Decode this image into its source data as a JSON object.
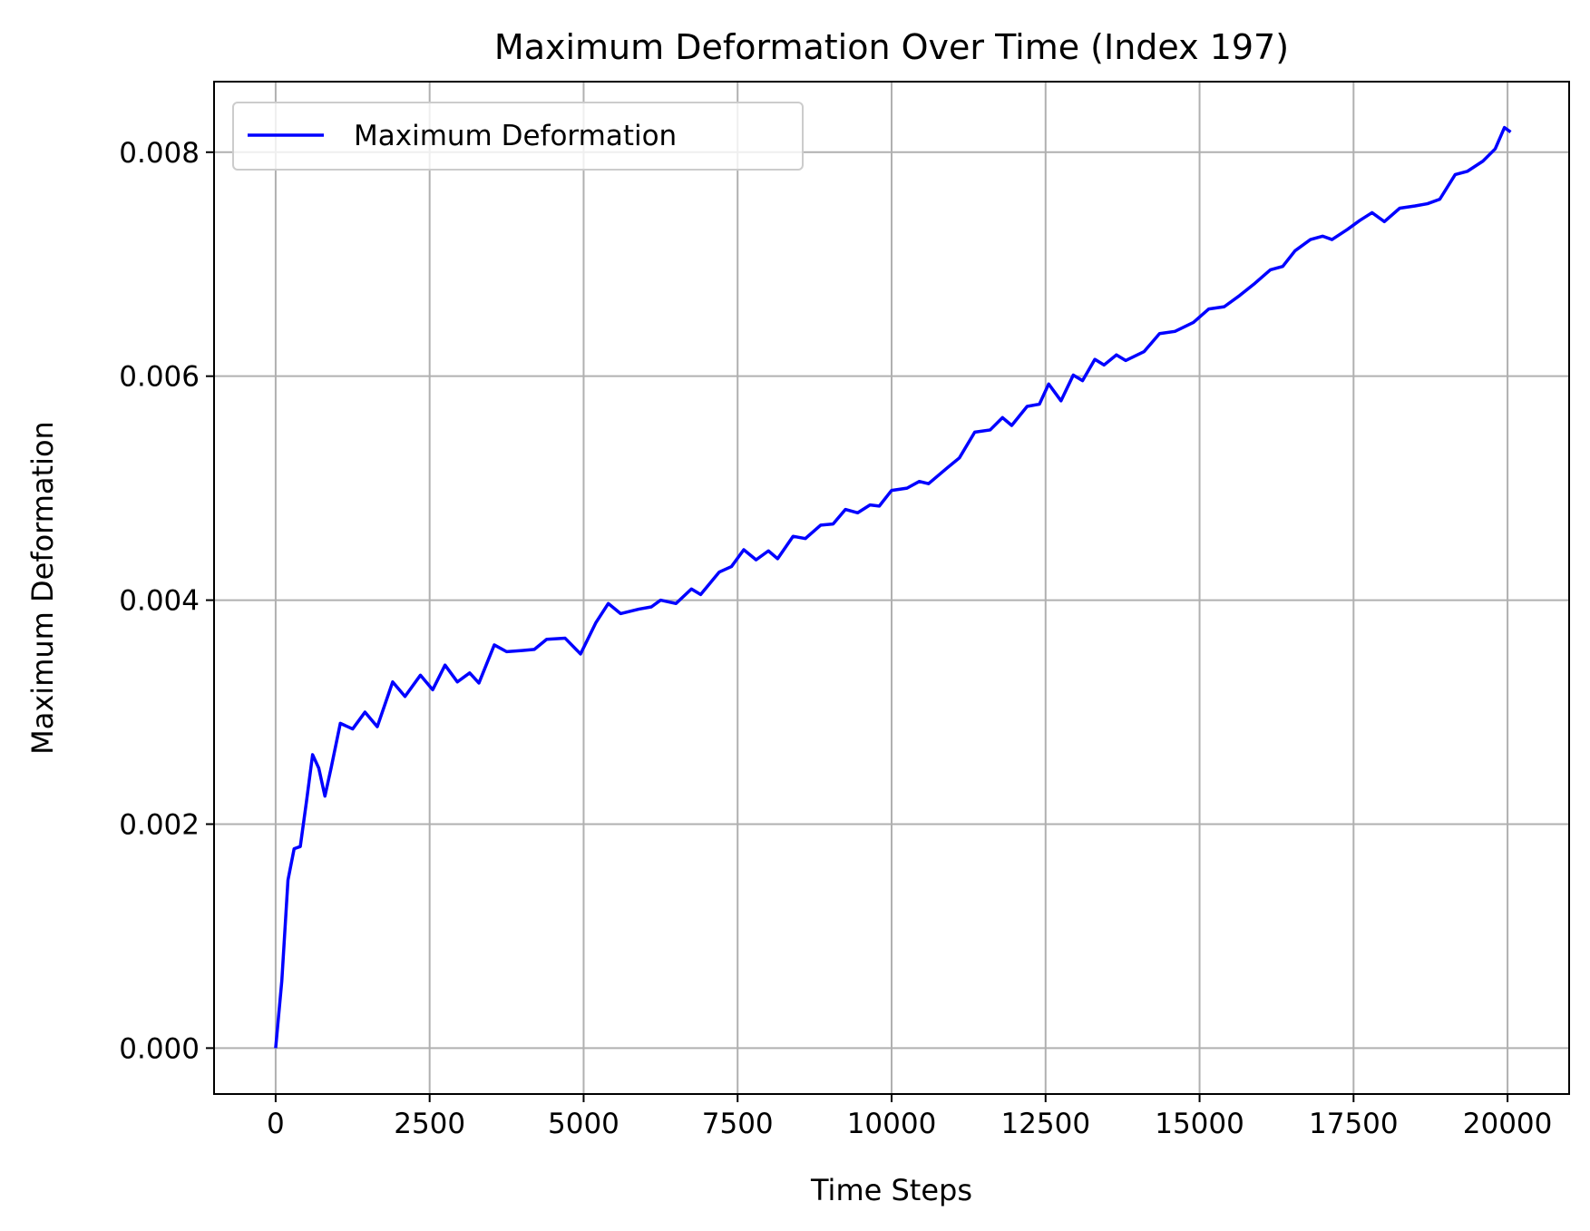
{
  "chart_data": {
    "type": "line",
    "title": "Maximum Deformation Over Time (Index 197)",
    "x_label": "Time Steps",
    "y_label": "Maximum Deformation",
    "legend": "upper left",
    "grid": true,
    "xlim": [
      -1000,
      21000
    ],
    "ylim": [
      -0.00041,
      0.00863
    ],
    "xticks": [
      0,
      2500,
      5000,
      7500,
      10000,
      12500,
      15000,
      17500,
      20000
    ],
    "yticks": [
      {
        "value": 0,
        "label": "0.000"
      },
      {
        "value": 0.002,
        "label": "0.002"
      },
      {
        "value": 0.004,
        "label": "0.004"
      },
      {
        "value": 0.006,
        "label": "0.006"
      },
      {
        "value": 0.008,
        "label": "0.008"
      }
    ],
    "x": [
      0,
      100,
      200,
      300,
      400,
      500,
      600,
      700,
      800,
      900,
      1050,
      1250,
      1450,
      1650,
      1900,
      2100,
      2350,
      2550,
      2750,
      2950,
      3150,
      3300,
      3550,
      3750,
      4000,
      4200,
      4400,
      4700,
      4950,
      5200,
      5400,
      5600,
      5900,
      6100,
      6250,
      6500,
      6750,
      6900,
      7200,
      7400,
      7600,
      7800,
      8000,
      8150,
      8400,
      8600,
      8850,
      9050,
      9250,
      9450,
      9650,
      9800,
      10000,
      10250,
      10450,
      10600,
      10900,
      11100,
      11350,
      11600,
      11800,
      11950,
      12200,
      12400,
      12550,
      12750,
      12950,
      13100,
      13300,
      13450,
      13650,
      13800,
      14100,
      14350,
      14600,
      14900,
      15150,
      15400,
      15650,
      15900,
      16150,
      16350,
      16550,
      16800,
      17000,
      17150,
      17400,
      17600,
      17800,
      18000,
      18250,
      18500,
      18700,
      18900,
      19150,
      19350,
      19600,
      19800,
      19950,
      20050
    ],
    "series": [
      {
        "name": "Maximum Deformation",
        "color": "#0000ff",
        "values": [
          0,
          0.0006,
          0.0015,
          0.00178,
          0.0018,
          0.0022,
          0.00262,
          0.0025,
          0.00225,
          0.0025,
          0.0029,
          0.00285,
          0.003,
          0.00287,
          0.00327,
          0.00314,
          0.00333,
          0.0032,
          0.00342,
          0.00327,
          0.00335,
          0.00326,
          0.0036,
          0.00354,
          0.00355,
          0.00356,
          0.00365,
          0.00366,
          0.00352,
          0.0038,
          0.00397,
          0.00388,
          0.00392,
          0.00394,
          0.004,
          0.00397,
          0.0041,
          0.00405,
          0.00425,
          0.0043,
          0.00445,
          0.00436,
          0.00444,
          0.00437,
          0.00457,
          0.00455,
          0.00467,
          0.00468,
          0.00481,
          0.00478,
          0.00485,
          0.00484,
          0.00498,
          0.005,
          0.00506,
          0.00504,
          0.00518,
          0.00527,
          0.0055,
          0.00552,
          0.00563,
          0.00556,
          0.00573,
          0.00575,
          0.00593,
          0.00578,
          0.00601,
          0.00596,
          0.00615,
          0.0061,
          0.00619,
          0.00614,
          0.00622,
          0.00638,
          0.0064,
          0.00648,
          0.0066,
          0.00662,
          0.00672,
          0.00683,
          0.00695,
          0.00698,
          0.00712,
          0.00722,
          0.00725,
          0.00722,
          0.00731,
          0.00739,
          0.00746,
          0.00738,
          0.0075,
          0.00752,
          0.00754,
          0.00758,
          0.0078,
          0.00783,
          0.00792,
          0.00803,
          0.00822,
          0.00818
        ]
      }
    ]
  }
}
